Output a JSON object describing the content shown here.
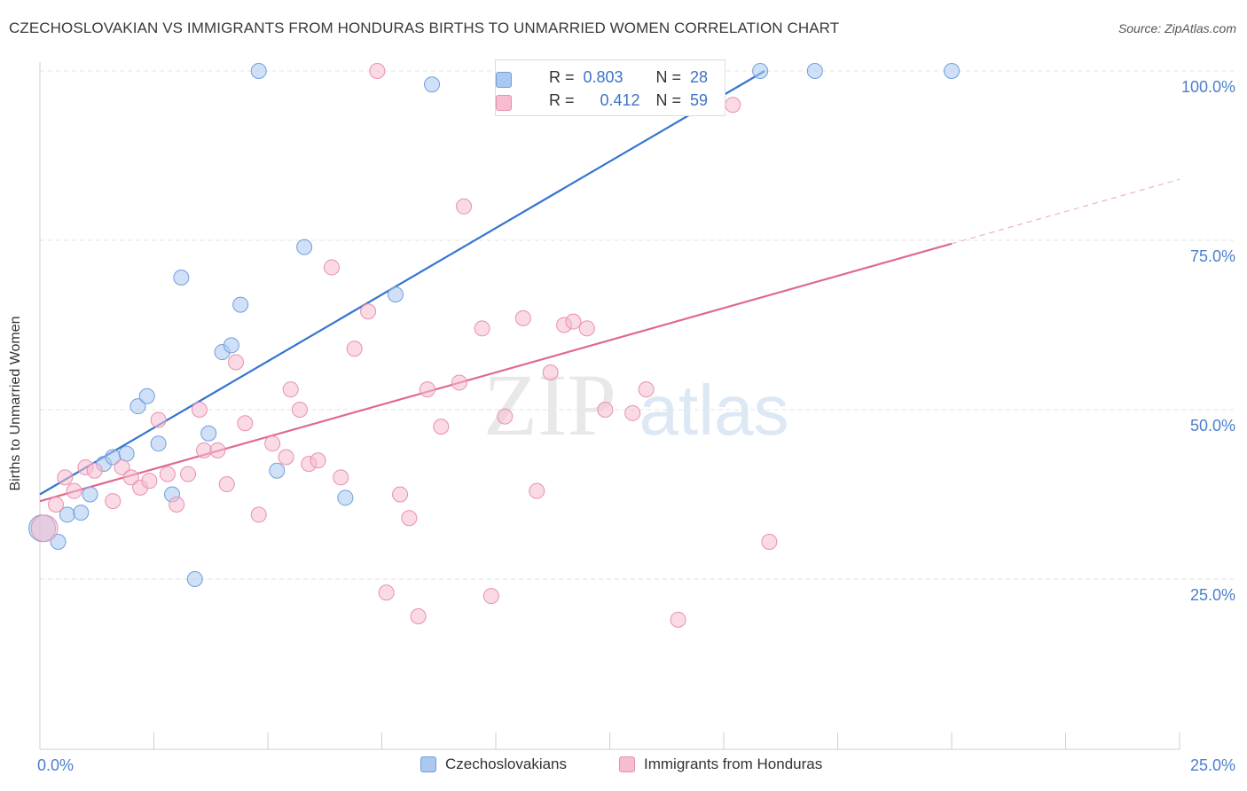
{
  "title": "CZECHOSLOVAKIAN VS IMMIGRANTS FROM HONDURAS BIRTHS TO UNMARRIED WOMEN CORRELATION CHART",
  "source": "Source: ZipAtlas.com",
  "watermark": {
    "zip": "ZIP",
    "atlas": "atlas"
  },
  "legend_stats": [
    {
      "r_label": "R =",
      "r_value": "0.803",
      "n_label": "N =",
      "n_value": "28",
      "color": "#aac8f0"
    },
    {
      "r_label": "R =",
      "r_value": "0.412",
      "n_label": "N =",
      "n_value": "59",
      "color": "#f6bcd0"
    }
  ],
  "chart_data": {
    "type": "scatter",
    "title": "CZECHOSLOVAKIAN VS IMMIGRANTS FROM HONDURAS BIRTHS TO UNMARRIED WOMEN CORRELATION CHART",
    "xlabel": "",
    "ylabel": "Births to Unmarried Women",
    "xlim": [
      0,
      25
    ],
    "ylim": [
      0,
      103
    ],
    "x_tick_labels": [
      "0.0%",
      "25.0%"
    ],
    "y_ticks": [
      25,
      50,
      75,
      100
    ],
    "y_tick_labels": [
      "25.0%",
      "50.0%",
      "75.0%",
      "100.0%"
    ],
    "grid": true,
    "legend_placement": "bottom",
    "series": [
      {
        "name": "Czechoslovakians",
        "color": "#aac8f0",
        "edge": "#6f9fdc",
        "line_color": "#3574d1",
        "trend": {
          "x": [
            0,
            15.9
          ],
          "y": [
            37.5,
            100
          ]
        },
        "points": [
          {
            "x": 0.05,
            "y": 32.5
          },
          {
            "x": 0.4,
            "y": 30.5
          },
          {
            "x": 0.6,
            "y": 34.5
          },
          {
            "x": 0.9,
            "y": 34.8
          },
          {
            "x": 1.1,
            "y": 37.5
          },
          {
            "x": 1.4,
            "y": 42.0
          },
          {
            "x": 1.6,
            "y": 43.0
          },
          {
            "x": 1.9,
            "y": 43.5
          },
          {
            "x": 2.15,
            "y": 50.5
          },
          {
            "x": 2.35,
            "y": 52.0
          },
          {
            "x": 2.6,
            "y": 45.0
          },
          {
            "x": 2.9,
            "y": 37.5
          },
          {
            "x": 3.1,
            "y": 69.5
          },
          {
            "x": 3.4,
            "y": 25.0
          },
          {
            "x": 3.7,
            "y": 46.5
          },
          {
            "x": 4.0,
            "y": 58.5
          },
          {
            "x": 4.2,
            "y": 59.5
          },
          {
            "x": 4.4,
            "y": 65.5
          },
          {
            "x": 4.8,
            "y": 100
          },
          {
            "x": 5.2,
            "y": 41.0
          },
          {
            "x": 5.8,
            "y": 74.0
          },
          {
            "x": 6.7,
            "y": 37.0
          },
          {
            "x": 7.8,
            "y": 67.0
          },
          {
            "x": 8.6,
            "y": 98.0
          },
          {
            "x": 11.3,
            "y": 100
          },
          {
            "x": 15.8,
            "y": 100
          },
          {
            "x": 17.0,
            "y": 100
          },
          {
            "x": 20.0,
            "y": 100
          }
        ]
      },
      {
        "name": "Immigrants from Honduras",
        "color": "#f6bcd0",
        "edge": "#e890ae",
        "line_color": "#e06890",
        "trend": {
          "x": [
            0,
            25
          ],
          "y": [
            36.5,
            84
          ]
        },
        "trend_solid_until_x": 20.0,
        "points": [
          {
            "x": 0.1,
            "y": 32.5
          },
          {
            "x": 0.35,
            "y": 36.0
          },
          {
            "x": 0.55,
            "y": 40.0
          },
          {
            "x": 0.75,
            "y": 38.0
          },
          {
            "x": 1.0,
            "y": 41.5
          },
          {
            "x": 1.2,
            "y": 41.0
          },
          {
            "x": 1.6,
            "y": 36.5
          },
          {
            "x": 1.8,
            "y": 41.5
          },
          {
            "x": 2.0,
            "y": 40.0
          },
          {
            "x": 2.2,
            "y": 38.5
          },
          {
            "x": 2.4,
            "y": 39.5
          },
          {
            "x": 2.6,
            "y": 48.5
          },
          {
            "x": 2.8,
            "y": 40.5
          },
          {
            "x": 3.0,
            "y": 36.0
          },
          {
            "x": 3.25,
            "y": 40.5
          },
          {
            "x": 3.5,
            "y": 50.0
          },
          {
            "x": 3.6,
            "y": 44.0
          },
          {
            "x": 3.9,
            "y": 44.0
          },
          {
            "x": 4.1,
            "y": 39.0
          },
          {
            "x": 4.3,
            "y": 57.0
          },
          {
            "x": 4.5,
            "y": 48.0
          },
          {
            "x": 4.8,
            "y": 34.5
          },
          {
            "x": 5.1,
            "y": 45.0
          },
          {
            "x": 5.4,
            "y": 43.0
          },
          {
            "x": 5.5,
            "y": 53.0
          },
          {
            "x": 5.7,
            "y": 50.0
          },
          {
            "x": 5.9,
            "y": 42.0
          },
          {
            "x": 6.1,
            "y": 42.5
          },
          {
            "x": 6.4,
            "y": 71.0
          },
          {
            "x": 6.6,
            "y": 40.0
          },
          {
            "x": 6.9,
            "y": 59.0
          },
          {
            "x": 7.2,
            "y": 64.5
          },
          {
            "x": 7.4,
            "y": 100
          },
          {
            "x": 7.6,
            "y": 23.0
          },
          {
            "x": 7.9,
            "y": 37.5
          },
          {
            "x": 8.1,
            "y": 34.0
          },
          {
            "x": 8.3,
            "y": 19.5
          },
          {
            "x": 8.5,
            "y": 53.0
          },
          {
            "x": 8.8,
            "y": 47.5
          },
          {
            "x": 9.2,
            "y": 54.0
          },
          {
            "x": 9.3,
            "y": 80.0
          },
          {
            "x": 9.7,
            "y": 62.0
          },
          {
            "x": 9.9,
            "y": 22.5
          },
          {
            "x": 10.2,
            "y": 49.0
          },
          {
            "x": 10.6,
            "y": 63.5
          },
          {
            "x": 10.9,
            "y": 38.0
          },
          {
            "x": 11.2,
            "y": 55.5
          },
          {
            "x": 11.5,
            "y": 62.5
          },
          {
            "x": 11.7,
            "y": 63.0
          },
          {
            "x": 12.0,
            "y": 62.0
          },
          {
            "x": 12.4,
            "y": 50.0
          },
          {
            "x": 12.7,
            "y": 100
          },
          {
            "x": 13.0,
            "y": 49.5
          },
          {
            "x": 13.3,
            "y": 53.0
          },
          {
            "x": 13.8,
            "y": 100
          },
          {
            "x": 14.0,
            "y": 19.0
          },
          {
            "x": 14.5,
            "y": 100
          },
          {
            "x": 15.2,
            "y": 95.0
          },
          {
            "x": 16.0,
            "y": 30.5
          }
        ]
      }
    ]
  }
}
